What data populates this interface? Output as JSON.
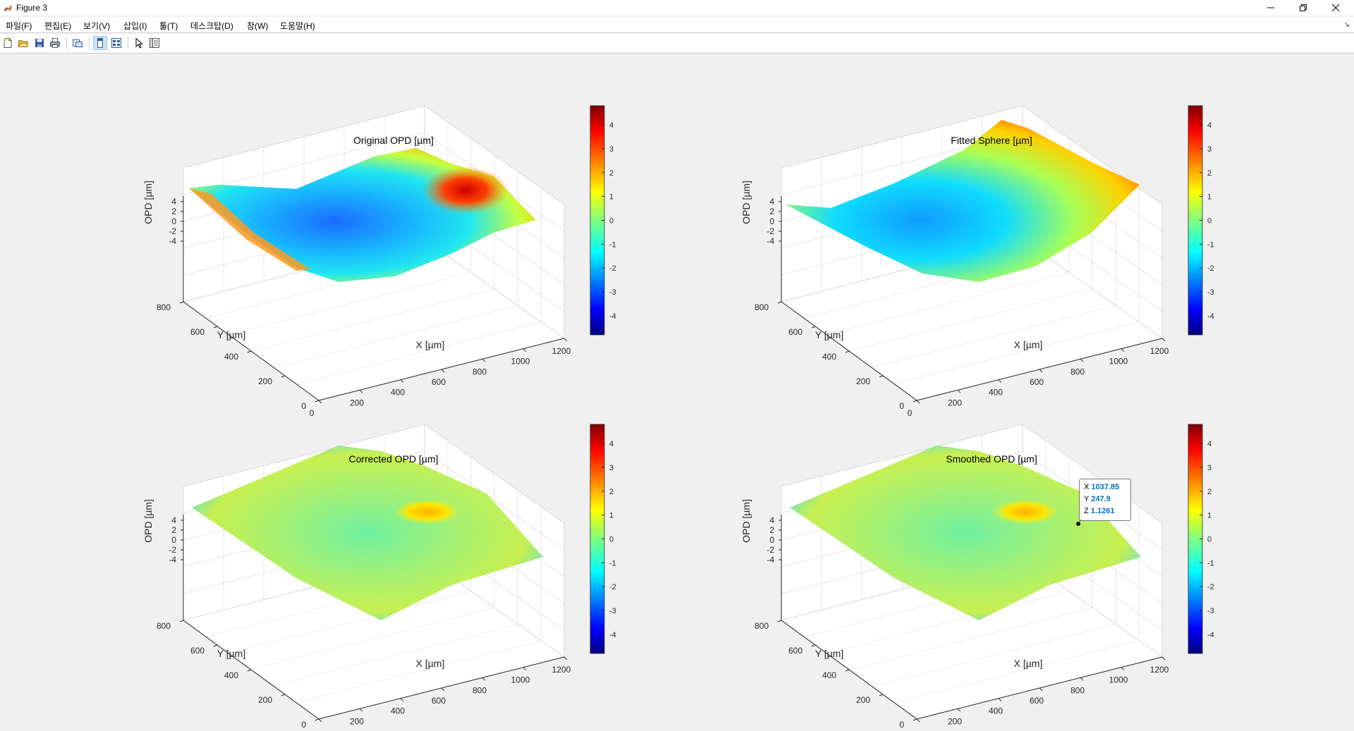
{
  "window": {
    "title": "Figure 3"
  },
  "menu": [
    "파일(F)",
    "편집(E)",
    "보기(V)",
    "삽입(I)",
    "툴(T)",
    "데스크탑(D)",
    "창(W)",
    "도움말(H)"
  ],
  "toolbar": [
    "new-figure-icon",
    "open-icon",
    "save-icon",
    "print-icon",
    "link-axes-icon",
    "dock-icon",
    "property-inspector-icon",
    "pointer-icon",
    "panel-icon"
  ],
  "colorbar": {
    "ticks": [
      "4",
      "3",
      "2",
      "1",
      "0",
      "-1",
      "-2",
      "-3",
      "-4"
    ],
    "colormap": "jet",
    "range": [
      -4.8,
      4.8
    ]
  },
  "plots": [
    {
      "title": "Original OPD [µm]",
      "xlabel": "X [µm]",
      "ylabel": "Y [µm]",
      "zlabel": "OPD [µm]",
      "xticks": [
        "0",
        "200",
        "400",
        "600",
        "800",
        "1000",
        "1200"
      ],
      "yticks": [
        "0",
        "200",
        "400",
        "600",
        "800"
      ],
      "zticks": [
        "4",
        "2",
        "0",
        "-2",
        "-4"
      ]
    },
    {
      "title": "Fitted Sphere [µm]",
      "xlabel": "X [µm]",
      "ylabel": "Y [µm]",
      "zlabel": "OPD [µm]",
      "xticks": [
        "0",
        "200",
        "400",
        "600",
        "800",
        "1000",
        "1200"
      ],
      "yticks": [
        "0",
        "200",
        "400",
        "600",
        "800"
      ],
      "zticks": [
        "4",
        "2",
        "0",
        "-2",
        "-4"
      ]
    },
    {
      "title": "Corrected OPD [µm]",
      "xlabel": "X [µm]",
      "ylabel": "Y [µm]",
      "zlabel": "OPD [µm]",
      "xticks": [
        "0",
        "200",
        "400",
        "600",
        "800",
        "1000",
        "1200"
      ],
      "yticks": [
        "0",
        "200",
        "400",
        "600",
        "800"
      ],
      "zticks": [
        "4",
        "2",
        "0",
        "-2",
        "-4"
      ]
    },
    {
      "title": "Smoothed OPD [µm]",
      "xlabel": "X [µm]",
      "ylabel": "Y [µm]",
      "zlabel": "OPD [µm]",
      "xticks": [
        "0",
        "200",
        "400",
        "600",
        "800",
        "1000",
        "1200"
      ],
      "yticks": [
        "0",
        "200",
        "400",
        "600",
        "800"
      ],
      "zticks": [
        "4",
        "2",
        "0",
        "-2",
        "-4"
      ]
    }
  ],
  "datatip": {
    "x_label": "X",
    "x_value": "1037.85",
    "y_label": "Y",
    "y_value": "247.9",
    "z_label": "Z",
    "z_value": "1.1261"
  },
  "colors": {
    "datatip_value": "#0072bd"
  }
}
